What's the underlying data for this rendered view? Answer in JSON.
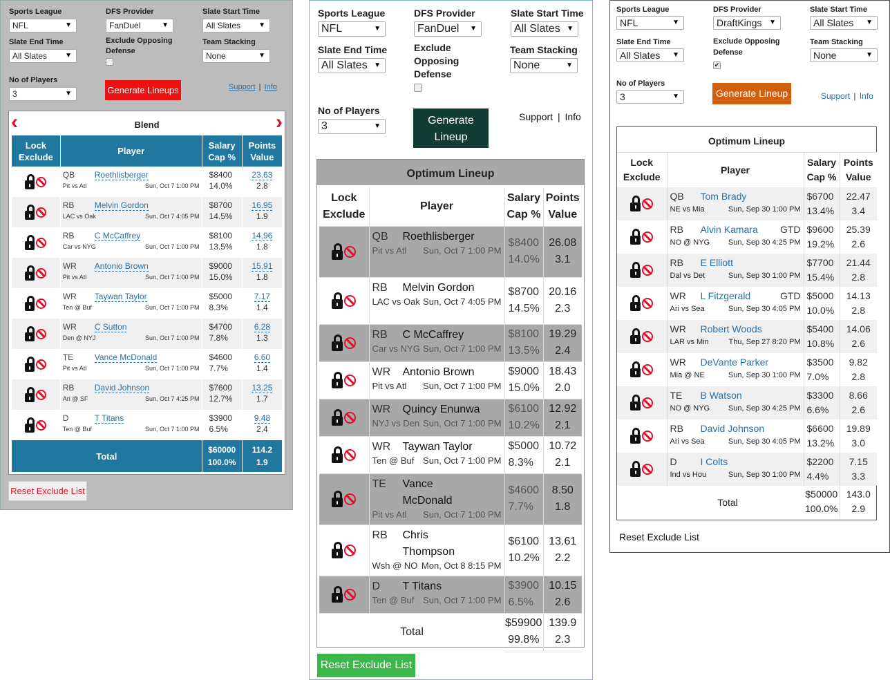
{
  "labels": {
    "sports_league": "Sports League",
    "dfs_provider": "DFS Provider",
    "slate_start": "Slate Start Time",
    "slate_end": "Slate End Time",
    "exclude_opposing": "Exclude Opposing Defense",
    "team_stacking": "Team Stacking",
    "no_players": "No of Players",
    "support": "Support",
    "info": "Info",
    "sep": "|",
    "reset": "Reset Exclude List",
    "lock": "Lock",
    "exclude": "Exclude",
    "player": "Player",
    "salary": "Salary",
    "cap": "Cap %",
    "points": "Points",
    "value": "Value",
    "total": "Total"
  },
  "panel1": {
    "league": "NFL",
    "provider": "FanDuel",
    "slate_start": "All Slates",
    "slate_end": "All Slates",
    "stacking": "None",
    "players": "3",
    "generate": "Generate Lineups",
    "title": "Blend",
    "prev": "‹",
    "next": "›",
    "rows": [
      {
        "pos": "QB",
        "name": "Roethlisberger",
        "match": "Pit vs Atl",
        "time": "Sun, Oct 7 1:00 PM",
        "salary": "$8400",
        "cap": "14.0%",
        "points": "23.63",
        "value": "2.8"
      },
      {
        "pos": "RB",
        "name": "Melvin Gordon",
        "match": "LAC vs Oak",
        "time": "Sun, Oct 7 4:05 PM",
        "salary": "$8700",
        "cap": "14.5%",
        "points": "16.95",
        "value": "1.9"
      },
      {
        "pos": "RB",
        "name": "C McCaffrey",
        "match": "Car vs NYG",
        "time": "Sun, Oct 7 1:00 PM",
        "salary": "$8100",
        "cap": "13.5%",
        "points": "14.96",
        "value": "1.8"
      },
      {
        "pos": "WR",
        "name": "Antonio Brown",
        "match": "Pit vs Atl",
        "time": "Sun, Oct 7 1:00 PM",
        "salary": "$9000",
        "cap": "15.0%",
        "points": "15.91",
        "value": "1.8"
      },
      {
        "pos": "WR",
        "name": "Taywan Taylor",
        "match": "Ten @ Buf",
        "time": "Sun, Oct 7 1:00 PM",
        "salary": "$5000",
        "cap": "8.3%",
        "points": "7.17",
        "value": "1.4"
      },
      {
        "pos": "WR",
        "name": "C Sutton",
        "match": "Den @ NYJ",
        "time": "Sun, Oct 7 1:00 PM",
        "salary": "$4700",
        "cap": "7.8%",
        "points": "6.28",
        "value": "1.3"
      },
      {
        "pos": "TE",
        "name": "Vance McDonald",
        "match": "Pit vs Atl",
        "time": "Sun, Oct 7 1:00 PM",
        "salary": "$4600",
        "cap": "7.7%",
        "points": "6.60",
        "value": "1.4"
      },
      {
        "pos": "RB",
        "name": "David Johnson",
        "match": "Ari @ SF",
        "time": "Sun, Oct 7 4:25 PM",
        "salary": "$7600",
        "cap": "12.7%",
        "points": "13.25",
        "value": "1.7"
      },
      {
        "pos": "D",
        "name": "T Titans",
        "match": "Ten @ Buf",
        "time": "Sun, Oct 7 1:00 PM",
        "salary": "$3900",
        "cap": "6.5%",
        "points": "9.48",
        "value": "2.4"
      }
    ],
    "total": {
      "salary": "$60000",
      "cap": "100.0%",
      "points": "114.2",
      "value": "1.9"
    }
  },
  "panel2": {
    "league": "NFL",
    "provider": "FanDuel",
    "slate_start": "All Slates",
    "slate_end": "All Slates",
    "stacking": "None",
    "players": "3",
    "generate_l1": "Generate",
    "generate_l2": "Lineup",
    "title": "Optimum Lineup",
    "rows": [
      {
        "pos": "QB",
        "name": "Roethlisberger",
        "match": "Pit vs Atl",
        "time": "Sun, Oct 7 1:00 PM",
        "salary": "$8400",
        "cap": "14.0%",
        "points": "26.08",
        "value": "3.1",
        "bg": "gr"
      },
      {
        "pos": "RB",
        "name": "Melvin Gordon",
        "match": "LAC vs Oak",
        "time": "Sun, Oct 7 4:05 PM",
        "salary": "$8700",
        "cap": "14.5%",
        "points": "20.16",
        "value": "2.3",
        "bg": "wh"
      },
      {
        "pos": "RB",
        "name": "C McCaffrey",
        "match": "Car vs NYG",
        "time": "Sun, Oct 7 1:00 PM",
        "salary": "$8100",
        "cap": "13.5%",
        "points": "19.29",
        "value": "2.4",
        "bg": "gr"
      },
      {
        "pos": "WR",
        "name": "Antonio Brown",
        "match": "Pit vs Atl",
        "time": "Sun, Oct 7 1:00 PM",
        "salary": "$9000",
        "cap": "15.0%",
        "points": "18.43",
        "value": "2.0",
        "bg": "wh"
      },
      {
        "pos": "WR",
        "name": "Quincy Enunwa",
        "match": "NYJ vs Den",
        "time": "Sun, Oct 7 1:00 PM",
        "salary": "$6100",
        "cap": "10.2%",
        "points": "12.92",
        "value": "2.1",
        "bg": "gr"
      },
      {
        "pos": "WR",
        "name": "Taywan Taylor",
        "match": "Ten @ Buf",
        "time": "Sun, Oct 7 1:00 PM",
        "salary": "$5000",
        "cap": "8.3%",
        "points": "10.72",
        "value": "2.1",
        "bg": "wh"
      },
      {
        "pos": "TE",
        "name": "Vance McDonald",
        "match": "Pit vs Atl",
        "time": "Sun, Oct 7 1:00 PM",
        "salary": "$4600",
        "cap": "7.7%",
        "points": "8.50",
        "value": "1.8",
        "bg": "gr"
      },
      {
        "pos": "RB",
        "name": "Chris Thompson",
        "match": "Wsh @ NO",
        "time": "Mon, Oct 8 8:15 PM",
        "salary": "$6100",
        "cap": "10.2%",
        "points": "13.61",
        "value": "2.2",
        "bg": "wh"
      },
      {
        "pos": "D",
        "name": "T Titans",
        "match": "Ten @ Buf",
        "time": "Sun, Oct 7 1:00 PM",
        "salary": "$3900",
        "cap": "6.5%",
        "points": "10.15",
        "value": "2.6",
        "bg": "gr"
      }
    ],
    "total": {
      "salary": "$59900",
      "cap": "99.8%",
      "points": "139.9",
      "value": "2.3"
    }
  },
  "panel3": {
    "league": "NFL",
    "provider": "DraftKings",
    "slate_start": "All Slates",
    "slate_end": "All Slates",
    "stacking": "None",
    "players": "3",
    "generate": "Generate Lineup",
    "title": "Optimum Lineup",
    "rows": [
      {
        "pos": "QB",
        "name": "Tom Brady",
        "tag": "",
        "match": "NE vs Mia",
        "time": "Sun, Sep 30 1:00 PM",
        "salary": "$6700",
        "cap": "13.4%",
        "points": "22.47",
        "value": "3.4"
      },
      {
        "pos": "RB",
        "name": "Alvin Kamara",
        "tag": "GTD",
        "match": "NO @ NYG",
        "time": "Sun, Sep 30 4:25 PM",
        "salary": "$9600",
        "cap": "19.2%",
        "points": "25.39",
        "value": "2.6"
      },
      {
        "pos": "RB",
        "name": "E Elliott",
        "tag": "",
        "match": "Dal vs Det",
        "time": "Sun, Sep 30 1:00 PM",
        "salary": "$7700",
        "cap": "15.4%",
        "points": "21.44",
        "value": "2.8"
      },
      {
        "pos": "WR",
        "name": "L Fitzgerald",
        "tag": "GTD",
        "match": "Ari vs Sea",
        "time": "Sun, Sep 30 4:05 PM",
        "salary": "$5000",
        "cap": "10.0%",
        "points": "14.13",
        "value": "2.8"
      },
      {
        "pos": "WR",
        "name": "Robert Woods",
        "tag": "",
        "match": "LAR vs Min",
        "time": "Thu, Sep 27 8:20 PM",
        "salary": "$5400",
        "cap": "10.8%",
        "points": "14.06",
        "value": "2.6"
      },
      {
        "pos": "WR",
        "name": "DeVante Parker",
        "tag": "",
        "match": "Mia @ NE",
        "time": "Sun, Sep 30 1:00 PM",
        "salary": "$3500",
        "cap": "7.0%",
        "points": "9.82",
        "value": "2.8"
      },
      {
        "pos": "TE",
        "name": "B Watson",
        "tag": "",
        "match": "NO @ NYG",
        "time": "Sun, Sep 30 4:25 PM",
        "salary": "$3300",
        "cap": "6.6%",
        "points": "8.66",
        "value": "2.6"
      },
      {
        "pos": "RB",
        "name": "David Johnson",
        "tag": "",
        "match": "Ari vs Sea",
        "time": "Sun, Sep 30 4:05 PM",
        "salary": "$6600",
        "cap": "13.2%",
        "points": "19.89",
        "value": "3.0"
      },
      {
        "pos": "D",
        "name": "I Colts",
        "tag": "",
        "match": "Ind vs Hou",
        "time": "Sun, Sep 30 1:00 PM",
        "salary": "$2200",
        "cap": "4.4%",
        "points": "7.15",
        "value": "3.3"
      }
    ],
    "total": {
      "salary": "$50000",
      "cap": "100.0%",
      "points": "143.0",
      "value": "2.9"
    }
  },
  "colors": {
    "p1_header": "#2078a0",
    "p1_generate": "#ee1111",
    "p2_generate": "#0f3d33",
    "p2_reset": "#3cb84a",
    "p3_generate": "#d06010",
    "ban": "#e0102a"
  }
}
